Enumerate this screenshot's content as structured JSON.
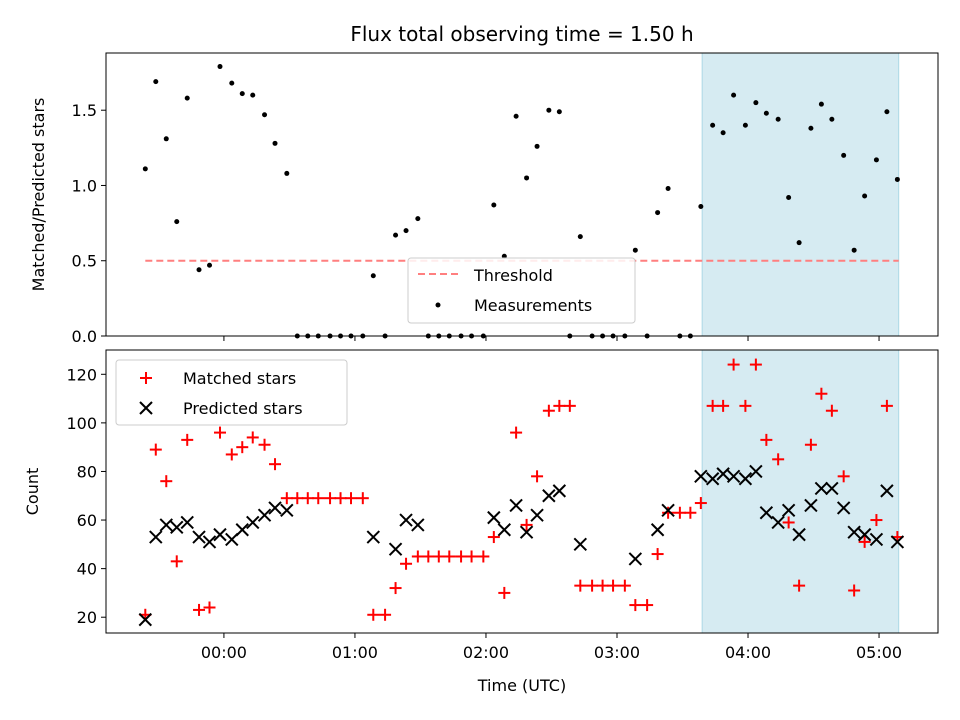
{
  "chart_data": [
    {
      "type": "scatter",
      "title": "Flux total observing time = 1.50 h",
      "xlabel": "",
      "ylabel": "Matched/Predicted stars",
      "xlim": [
        -0.9,
        5.45
      ],
      "ylim": [
        0,
        1.88
      ],
      "yticks": [
        0.0,
        0.5,
        1.0,
        1.5
      ],
      "ytick_labels": [
        "0.0",
        "0.5",
        "1.0",
        "1.5"
      ],
      "xticks": [
        0,
        1,
        2,
        3,
        4,
        5
      ],
      "x_unit": "hours after 00:00 UTC",
      "highlight_span": {
        "x0": 3.65,
        "x1": 5.15,
        "color": "#add8e6"
      },
      "threshold": {
        "label": "Threshold",
        "y": 0.5,
        "x0": -0.6,
        "x1": 5.15,
        "color": "#ff7f7f",
        "style": "dashed"
      },
      "legend": {
        "placement": "lower center",
        "entries": [
          "Threshold",
          "Measurements"
        ]
      },
      "series": [
        {
          "name": "Measurements",
          "color": "#000000",
          "marker": "dot",
          "x": [
            -0.6,
            -0.52,
            -0.44,
            -0.36,
            -0.28,
            -0.19,
            -0.11,
            -0.03,
            0.06,
            0.14,
            0.22,
            0.31,
            0.39,
            0.48,
            0.56,
            0.64,
            0.72,
            0.81,
            0.89,
            0.97,
            1.06,
            1.14,
            1.23,
            1.31,
            1.39,
            1.48,
            1.56,
            1.64,
            1.72,
            1.81,
            1.89,
            1.98,
            2.06,
            2.14,
            2.23,
            2.31,
            2.39,
            2.48,
            2.56,
            2.64,
            2.72,
            2.81,
            2.89,
            2.97,
            3.06,
            3.14,
            3.23,
            3.31,
            3.39,
            3.48,
            3.56,
            3.64,
            3.73,
            3.81,
            3.89,
            3.98,
            4.06,
            4.14,
            4.23,
            4.31,
            4.39,
            4.48,
            4.56,
            4.64,
            4.73,
            4.81,
            4.89,
            4.98,
            5.06,
            5.14
          ],
          "y": [
            1.11,
            1.69,
            1.31,
            0.76,
            1.58,
            0.44,
            0.47,
            1.79,
            1.68,
            1.61,
            1.6,
            1.47,
            1.28,
            1.08,
            0.0,
            0.0,
            0.0,
            0.0,
            0.0,
            0.0,
            0.0,
            0.4,
            0.0,
            0.67,
            0.7,
            0.78,
            0.0,
            0.0,
            0.0,
            0.0,
            0.0,
            0.0,
            0.87,
            0.53,
            1.46,
            1.05,
            1.26,
            1.5,
            1.49,
            0.0,
            0.66,
            0.0,
            0.0,
            0.0,
            0.0,
            0.57,
            0.0,
            0.82,
            0.98,
            0.0,
            0.0,
            0.86,
            1.4,
            1.35,
            1.6,
            1.4,
            1.55,
            1.48,
            1.44,
            0.92,
            0.62,
            1.38,
            1.54,
            1.44,
            1.2,
            0.57,
            0.93,
            1.17,
            1.49,
            1.04
          ]
        }
      ]
    },
    {
      "type": "scatter",
      "title": "",
      "xlabel": "Time (UTC)",
      "ylabel": "Count",
      "xlim": [
        -0.9,
        5.45
      ],
      "ylim": [
        13.5,
        130
      ],
      "yticks": [
        20,
        40,
        60,
        80,
        100,
        120
      ],
      "ytick_labels": [
        "20",
        "40",
        "60",
        "80",
        "100",
        "120"
      ],
      "xticks": [
        0,
        1,
        2,
        3,
        4,
        5
      ],
      "xtick_labels": [
        "00:00",
        "01:00",
        "02:00",
        "03:00",
        "04:00",
        "05:00"
      ],
      "x_unit": "hours after 00:00 UTC",
      "highlight_span": {
        "x0": 3.65,
        "x1": 5.15,
        "color": "#add8e6"
      },
      "legend": {
        "placement": "upper left",
        "entries": [
          "Matched stars",
          "Predicted stars"
        ]
      },
      "series": [
        {
          "name": "Matched stars",
          "color": "#ff0000",
          "marker": "plus",
          "x": [
            -0.6,
            -0.52,
            -0.44,
            -0.36,
            -0.28,
            -0.19,
            -0.11,
            -0.03,
            0.06,
            0.14,
            0.22,
            0.31,
            0.39,
            0.48,
            0.56,
            0.64,
            0.72,
            0.81,
            0.89,
            0.97,
            1.06,
            1.14,
            1.23,
            1.31,
            1.39,
            1.48,
            1.56,
            1.64,
            1.72,
            1.81,
            1.89,
            1.98,
            2.06,
            2.14,
            2.23,
            2.31,
            2.39,
            2.48,
            2.56,
            2.64,
            2.72,
            2.81,
            2.89,
            2.97,
            3.06,
            3.14,
            3.23,
            3.31,
            3.39,
            3.48,
            3.56,
            3.64,
            3.73,
            3.81,
            3.89,
            3.98,
            4.06,
            4.14,
            4.23,
            4.31,
            4.39,
            4.48,
            4.56,
            4.64,
            4.73,
            4.81,
            4.89,
            4.98,
            5.06,
            5.14
          ],
          "y": [
            21,
            89,
            76,
            43,
            93,
            23,
            24,
            96,
            87,
            90,
            94,
            91,
            83,
            69,
            69,
            69,
            69,
            69,
            69,
            69,
            69,
            21,
            21,
            32,
            42,
            45,
            45,
            45,
            45,
            45,
            45,
            45,
            53,
            30,
            96,
            58,
            78,
            105,
            107,
            107,
            33,
            33,
            33,
            33,
            33,
            25,
            25,
            46,
            63,
            63,
            63,
            67,
            107,
            107,
            124,
            107,
            124,
            93,
            85,
            59,
            33,
            91,
            112,
            105,
            78,
            31,
            51,
            60,
            107,
            53
          ]
        },
        {
          "name": "Predicted stars",
          "color": "#000000",
          "marker": "x",
          "x": [
            -0.6,
            -0.52,
            -0.44,
            -0.36,
            -0.28,
            -0.19,
            -0.11,
            -0.03,
            0.06,
            0.14,
            0.22,
            0.31,
            0.39,
            0.48,
            1.14,
            1.31,
            1.39,
            1.48,
            2.06,
            2.14,
            2.23,
            2.31,
            2.39,
            2.48,
            2.56,
            2.72,
            3.14,
            3.31,
            3.39,
            3.64,
            3.73,
            3.81,
            3.89,
            3.98,
            4.06,
            4.14,
            4.23,
            4.31,
            4.39,
            4.48,
            4.56,
            4.64,
            4.73,
            4.81,
            4.89,
            4.98,
            5.06,
            5.14
          ],
          "y": [
            19,
            53,
            58,
            57,
            59,
            53,
            51,
            54,
            52,
            56,
            59,
            62,
            65,
            64,
            53,
            48,
            60,
            58,
            61,
            56,
            66,
            55,
            62,
            70,
            72,
            50,
            44,
            56,
            64,
            78,
            77,
            79,
            78,
            77,
            80,
            63,
            59,
            64,
            54,
            66,
            73,
            73,
            65,
            55,
            54,
            52,
            72,
            51
          ]
        }
      ]
    }
  ]
}
